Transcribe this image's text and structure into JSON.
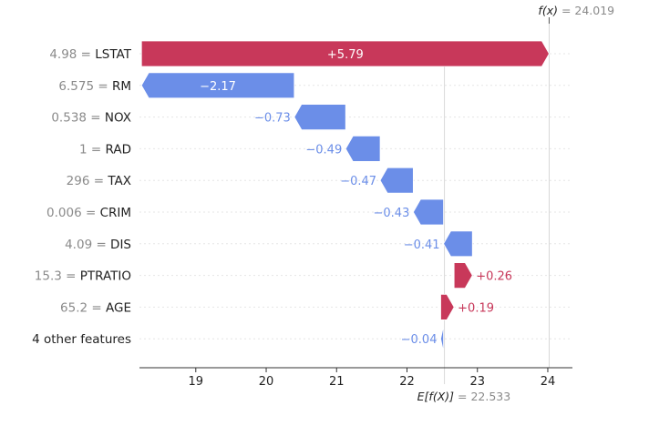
{
  "chart_data": {
    "type": "waterfall",
    "base_value": 22.533,
    "base_label": "E[f(X)]",
    "base_value_label": "= 22.533",
    "output_value": 24.019,
    "output_label": "f(x)",
    "output_value_label": "= 24.019",
    "xlim": [
      18.2,
      24.35
    ],
    "xticks": [
      19,
      20,
      21,
      22,
      23,
      24
    ],
    "xtick_labels": [
      "19",
      "20",
      "21",
      "22",
      "23",
      "24"
    ],
    "colors": {
      "positive": "#c8385a",
      "negative": "#6b8ee8",
      "text_gray": "#8a8a8a",
      "text_dark": "#222222",
      "grid": "#e6e6e6"
    },
    "features": [
      {
        "value": "4.98",
        "name": "LSTAT",
        "shap": 5.79,
        "label": "+5.79"
      },
      {
        "value": "6.575",
        "name": "RM",
        "shap": -2.17,
        "label": "−2.17"
      },
      {
        "value": "0.538",
        "name": "NOX",
        "shap": -0.73,
        "label": "−0.73"
      },
      {
        "value": "1",
        "name": "RAD",
        "shap": -0.49,
        "label": "−0.49"
      },
      {
        "value": "296",
        "name": "TAX",
        "shap": -0.47,
        "label": "−0.47"
      },
      {
        "value": "0.006",
        "name": "CRIM",
        "shap": -0.43,
        "label": "−0.43"
      },
      {
        "value": "4.09",
        "name": "DIS",
        "shap": -0.41,
        "label": "−0.41"
      },
      {
        "value": "15.3",
        "name": "PTRATIO",
        "shap": 0.26,
        "label": "+0.26"
      },
      {
        "value": "65.2",
        "name": "AGE",
        "shap": 0.19,
        "label": "+0.19"
      },
      {
        "value": "",
        "name": "4 other features",
        "shap": -0.04,
        "label": "−0.04"
      }
    ]
  }
}
